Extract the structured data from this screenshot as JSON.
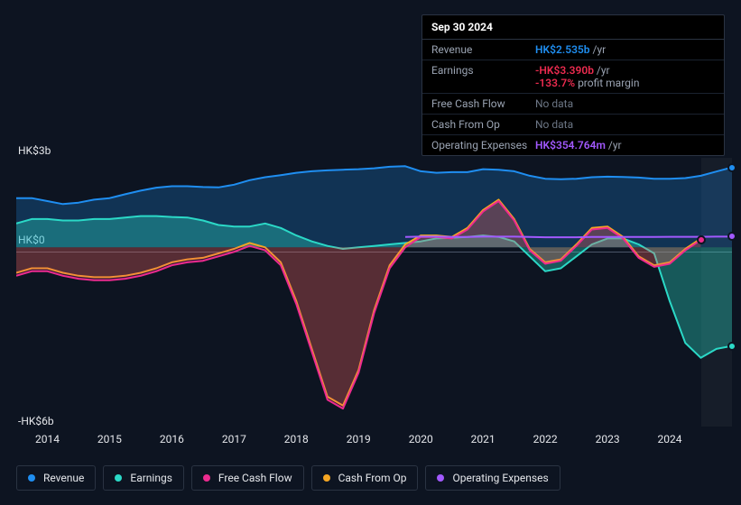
{
  "chart": {
    "type": "area-line",
    "background_color": "#0d1421",
    "grid_color": "#4a5568",
    "text_color": "#e5e7eb",
    "font_size_axis": 12,
    "font_size_legend": 12,
    "x": {
      "domain_start": 2013.5,
      "domain_end": 2025.0,
      "ticks": [
        2014,
        2015,
        2016,
        2017,
        2018,
        2019,
        2020,
        2021,
        2022,
        2023,
        2024
      ],
      "tick_labels": [
        "2014",
        "2015",
        "2016",
        "2017",
        "2018",
        "2019",
        "2020",
        "2021",
        "2022",
        "2023",
        "2024"
      ]
    },
    "y": {
      "domain_min": -6,
      "domain_max": 3,
      "ticks": [
        3,
        0,
        -6
      ],
      "tick_labels": [
        "HK$3b",
        "HK$0",
        "-HK$6b"
      ]
    },
    "future_cutoff_x": 2024.5,
    "series": [
      {
        "id": "revenue",
        "label": "Revenue",
        "color": "#1f8ef1",
        "fill_opacity": 0.25,
        "line_width": 2,
        "points": [
          [
            2013.5,
            1.65
          ],
          [
            2013.75,
            1.65
          ],
          [
            2014.0,
            1.55
          ],
          [
            2014.25,
            1.45
          ],
          [
            2014.5,
            1.5
          ],
          [
            2014.75,
            1.6
          ],
          [
            2015.0,
            1.65
          ],
          [
            2015.25,
            1.78
          ],
          [
            2015.5,
            1.9
          ],
          [
            2015.75,
            2.0
          ],
          [
            2016.0,
            2.05
          ],
          [
            2016.25,
            2.05
          ],
          [
            2016.5,
            2.02
          ],
          [
            2016.75,
            2.01
          ],
          [
            2017.0,
            2.1
          ],
          [
            2017.25,
            2.25
          ],
          [
            2017.5,
            2.35
          ],
          [
            2017.75,
            2.42
          ],
          [
            2018.0,
            2.5
          ],
          [
            2018.25,
            2.55
          ],
          [
            2018.5,
            2.58
          ],
          [
            2018.75,
            2.6
          ],
          [
            2019.0,
            2.62
          ],
          [
            2019.25,
            2.65
          ],
          [
            2019.5,
            2.7
          ],
          [
            2019.75,
            2.72
          ],
          [
            2020.0,
            2.55
          ],
          [
            2020.25,
            2.5
          ],
          [
            2020.5,
            2.52
          ],
          [
            2020.75,
            2.52
          ],
          [
            2021.0,
            2.62
          ],
          [
            2021.25,
            2.6
          ],
          [
            2021.5,
            2.55
          ],
          [
            2021.75,
            2.4
          ],
          [
            2022.0,
            2.3
          ],
          [
            2022.25,
            2.28
          ],
          [
            2022.5,
            2.3
          ],
          [
            2022.75,
            2.35
          ],
          [
            2023.0,
            2.37
          ],
          [
            2023.25,
            2.36
          ],
          [
            2023.5,
            2.34
          ],
          [
            2023.75,
            2.3
          ],
          [
            2024.0,
            2.3
          ],
          [
            2024.25,
            2.32
          ],
          [
            2024.5,
            2.4
          ],
          [
            2024.75,
            2.54
          ],
          [
            2025.0,
            2.68
          ]
        ]
      },
      {
        "id": "earnings",
        "label": "Earnings",
        "color": "#2bd9c7",
        "fill_opacity": 0.35,
        "line_width": 2,
        "points": [
          [
            2013.5,
            0.8
          ],
          [
            2013.75,
            0.95
          ],
          [
            2014.0,
            0.95
          ],
          [
            2014.25,
            0.9
          ],
          [
            2014.5,
            0.9
          ],
          [
            2014.75,
            0.95
          ],
          [
            2015.0,
            0.95
          ],
          [
            2015.25,
            1.0
          ],
          [
            2015.5,
            1.05
          ],
          [
            2015.75,
            1.05
          ],
          [
            2016.0,
            1.02
          ],
          [
            2016.25,
            1.0
          ],
          [
            2016.5,
            0.9
          ],
          [
            2016.75,
            0.75
          ],
          [
            2017.0,
            0.7
          ],
          [
            2017.25,
            0.7
          ],
          [
            2017.5,
            0.8
          ],
          [
            2017.75,
            0.65
          ],
          [
            2018.0,
            0.4
          ],
          [
            2018.25,
            0.2
          ],
          [
            2018.5,
            0.05
          ],
          [
            2018.75,
            -0.05
          ],
          [
            2019.0,
            0.0
          ],
          [
            2019.25,
            0.05
          ],
          [
            2019.5,
            0.1
          ],
          [
            2019.75,
            0.15
          ],
          [
            2020.0,
            0.2
          ],
          [
            2020.25,
            0.3
          ],
          [
            2020.5,
            0.32
          ],
          [
            2020.75,
            0.35
          ],
          [
            2021.0,
            0.4
          ],
          [
            2021.25,
            0.35
          ],
          [
            2021.5,
            0.2
          ],
          [
            2021.75,
            -0.3
          ],
          [
            2022.0,
            -0.8
          ],
          [
            2022.25,
            -0.7
          ],
          [
            2022.5,
            -0.3
          ],
          [
            2022.75,
            0.1
          ],
          [
            2023.0,
            0.3
          ],
          [
            2023.25,
            0.3
          ],
          [
            2023.5,
            0.1
          ],
          [
            2023.75,
            -0.2
          ],
          [
            2024.0,
            -1.8
          ],
          [
            2024.25,
            -3.2
          ],
          [
            2024.5,
            -3.7
          ],
          [
            2024.75,
            -3.4
          ],
          [
            2025.0,
            -3.3
          ]
        ]
      },
      {
        "id": "free_cash_flow",
        "label": "Free Cash Flow",
        "color": "#ec2b8f",
        "fill_opacity": 0.18,
        "line_width": 2,
        "points": [
          [
            2013.5,
            -0.95
          ],
          [
            2013.75,
            -0.8
          ],
          [
            2014.0,
            -0.8
          ],
          [
            2014.25,
            -0.95
          ],
          [
            2014.5,
            -1.05
          ],
          [
            2014.75,
            -1.1
          ],
          [
            2015.0,
            -1.1
          ],
          [
            2015.25,
            -1.05
          ],
          [
            2015.5,
            -0.95
          ],
          [
            2015.75,
            -0.8
          ],
          [
            2016.0,
            -0.6
          ],
          [
            2016.25,
            -0.5
          ],
          [
            2016.5,
            -0.45
          ],
          [
            2016.75,
            -0.3
          ],
          [
            2017.0,
            -0.15
          ],
          [
            2017.25,
            0.05
          ],
          [
            2017.5,
            -0.1
          ],
          [
            2017.75,
            -0.6
          ],
          [
            2018.0,
            -1.9
          ],
          [
            2018.25,
            -3.5
          ],
          [
            2018.5,
            -5.1
          ],
          [
            2018.75,
            -5.4
          ],
          [
            2019.0,
            -4.2
          ],
          [
            2019.25,
            -2.2
          ],
          [
            2019.5,
            -0.7
          ],
          [
            2019.75,
            0.0
          ],
          [
            2020.0,
            0.35
          ],
          [
            2020.25,
            0.35
          ],
          [
            2020.5,
            0.3
          ],
          [
            2020.75,
            0.6
          ],
          [
            2021.0,
            1.2
          ],
          [
            2021.25,
            1.55
          ],
          [
            2021.5,
            0.9
          ],
          [
            2021.75,
            -0.1
          ],
          [
            2022.0,
            -0.55
          ],
          [
            2022.25,
            -0.45
          ],
          [
            2022.5,
            0.05
          ],
          [
            2022.75,
            0.6
          ],
          [
            2023.0,
            0.65
          ],
          [
            2023.25,
            0.3
          ],
          [
            2023.5,
            -0.35
          ],
          [
            2023.75,
            -0.65
          ],
          [
            2024.0,
            -0.55
          ],
          [
            2024.25,
            -0.1
          ],
          [
            2024.5,
            0.25
          ]
        ]
      },
      {
        "id": "cash_from_op",
        "label": "Cash From Op",
        "color": "#f5a623",
        "fill_opacity": 0.18,
        "line_width": 2,
        "points": [
          [
            2013.5,
            -0.85
          ],
          [
            2013.75,
            -0.7
          ],
          [
            2014.0,
            -0.7
          ],
          [
            2014.25,
            -0.85
          ],
          [
            2014.5,
            -0.95
          ],
          [
            2014.75,
            -1.0
          ],
          [
            2015.0,
            -1.0
          ],
          [
            2015.25,
            -0.95
          ],
          [
            2015.5,
            -0.85
          ],
          [
            2015.75,
            -0.7
          ],
          [
            2016.0,
            -0.5
          ],
          [
            2016.25,
            -0.4
          ],
          [
            2016.5,
            -0.35
          ],
          [
            2016.75,
            -0.2
          ],
          [
            2017.0,
            -0.05
          ],
          [
            2017.25,
            0.15
          ],
          [
            2017.5,
            0.0
          ],
          [
            2017.75,
            -0.5
          ],
          [
            2018.0,
            -1.8
          ],
          [
            2018.25,
            -3.4
          ],
          [
            2018.5,
            -5.0
          ],
          [
            2018.75,
            -5.3
          ],
          [
            2019.0,
            -4.1
          ],
          [
            2019.25,
            -2.1
          ],
          [
            2019.5,
            -0.6
          ],
          [
            2019.75,
            0.1
          ],
          [
            2020.0,
            0.4
          ],
          [
            2020.25,
            0.4
          ],
          [
            2020.5,
            0.35
          ],
          [
            2020.75,
            0.65
          ],
          [
            2021.0,
            1.25
          ],
          [
            2021.25,
            1.6
          ],
          [
            2021.5,
            0.95
          ],
          [
            2021.75,
            -0.05
          ],
          [
            2022.0,
            -0.5
          ],
          [
            2022.25,
            -0.4
          ],
          [
            2022.5,
            0.1
          ],
          [
            2022.75,
            0.65
          ],
          [
            2023.0,
            0.7
          ],
          [
            2023.25,
            0.35
          ],
          [
            2023.5,
            -0.3
          ],
          [
            2023.75,
            -0.6
          ],
          [
            2024.0,
            -0.5
          ],
          [
            2024.25,
            -0.05
          ],
          [
            2024.5,
            0.3
          ]
        ]
      },
      {
        "id": "opex",
        "label": "Operating Expenses",
        "color": "#a259ff",
        "fill_opacity": 0.0,
        "line_width": 2,
        "points": [
          [
            2019.75,
            0.35
          ],
          [
            2020.0,
            0.36
          ],
          [
            2020.25,
            0.36
          ],
          [
            2020.5,
            0.35
          ],
          [
            2020.75,
            0.35
          ],
          [
            2021.0,
            0.36
          ],
          [
            2021.25,
            0.36
          ],
          [
            2021.5,
            0.36
          ],
          [
            2021.75,
            0.35
          ],
          [
            2022.0,
            0.34
          ],
          [
            2022.25,
            0.34
          ],
          [
            2022.5,
            0.34
          ],
          [
            2022.75,
            0.35
          ],
          [
            2023.0,
            0.35
          ],
          [
            2023.25,
            0.35
          ],
          [
            2023.5,
            0.35
          ],
          [
            2023.75,
            0.35
          ],
          [
            2024.0,
            0.355
          ],
          [
            2024.25,
            0.355
          ],
          [
            2024.5,
            0.355
          ],
          [
            2024.75,
            0.36
          ],
          [
            2025.0,
            0.36
          ]
        ]
      }
    ]
  },
  "legend": [
    {
      "id": "revenue",
      "label": "Revenue",
      "color": "#1f8ef1"
    },
    {
      "id": "earnings",
      "label": "Earnings",
      "color": "#2bd9c7"
    },
    {
      "id": "free_cash_flow",
      "label": "Free Cash Flow",
      "color": "#ec2b8f"
    },
    {
      "id": "cash_from_op",
      "label": "Cash From Op",
      "color": "#f5a623"
    },
    {
      "id": "opex",
      "label": "Operating Expenses",
      "color": "#a259ff"
    }
  ],
  "tooltip": {
    "title": "Sep 30 2024",
    "rows": [
      {
        "label": "Revenue",
        "value": "HK$2.535b",
        "value_class": "v-blue",
        "suffix": "/yr"
      },
      {
        "label": "Earnings",
        "value": "-HK$3.390b",
        "value_class": "v-red",
        "suffix": "/yr",
        "extra_value": "-133.7%",
        "extra_suffix": "profit margin"
      },
      {
        "label": "Free Cash Flow",
        "nodata": "No data"
      },
      {
        "label": "Cash From Op",
        "nodata": "No data"
      },
      {
        "label": "Operating Expenses",
        "value": "HK$354.764m",
        "value_class": "v-purple",
        "suffix": "/yr"
      }
    ]
  },
  "markers": [
    {
      "series": "revenue",
      "x": 2025.0,
      "color": "#1f8ef1"
    },
    {
      "series": "earnings",
      "x": 2025.0,
      "color": "#2bd9c7"
    },
    {
      "series": "opex",
      "x": 2025.0,
      "color": "#a259ff"
    },
    {
      "series": "free_cash_flow",
      "x": 2024.5,
      "color": "#ec2b8f"
    }
  ]
}
